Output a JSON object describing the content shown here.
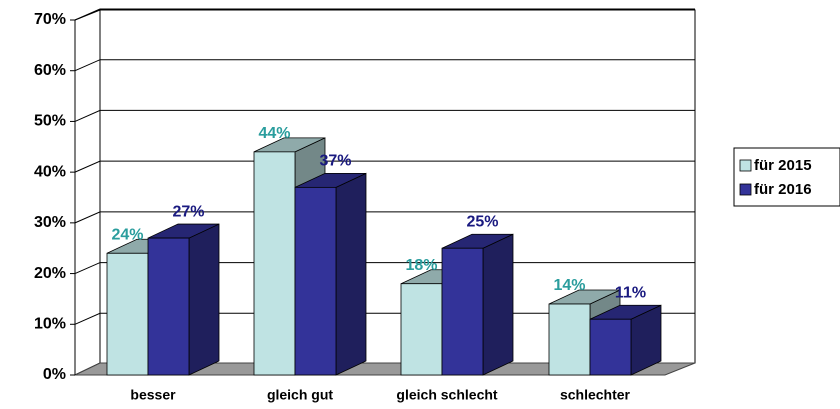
{
  "chart_data": {
    "type": "bar3d",
    "categories": [
      "besser",
      "gleich gut",
      "gleich schlecht",
      "schlechter"
    ],
    "series": [
      {
        "name": "für 2015",
        "color": "#bfe3e3",
        "label_color": "#2a9d9d",
        "values": [
          24,
          44,
          18,
          14
        ],
        "value_labels": [
          "24%",
          "44%",
          "18%",
          "14%"
        ]
      },
      {
        "name": "für 2016",
        "color": "#333399",
        "label_color": "#1a1a80",
        "values": [
          27,
          37,
          25,
          11
        ],
        "value_labels": [
          "27%",
          "37%",
          "25%",
          "11%"
        ]
      }
    ],
    "ylim": [
      0,
      70
    ],
    "yticks": [
      {
        "value": 0,
        "label": "0%"
      },
      {
        "value": 10,
        "label": "10%"
      },
      {
        "value": 20,
        "label": "20%"
      },
      {
        "value": 30,
        "label": "30%"
      },
      {
        "value": 40,
        "label": "40%"
      },
      {
        "value": 50,
        "label": "50%"
      },
      {
        "value": 60,
        "label": "60%"
      },
      {
        "value": 70,
        "label": "70%"
      }
    ],
    "grid": true,
    "legend": "right"
  }
}
